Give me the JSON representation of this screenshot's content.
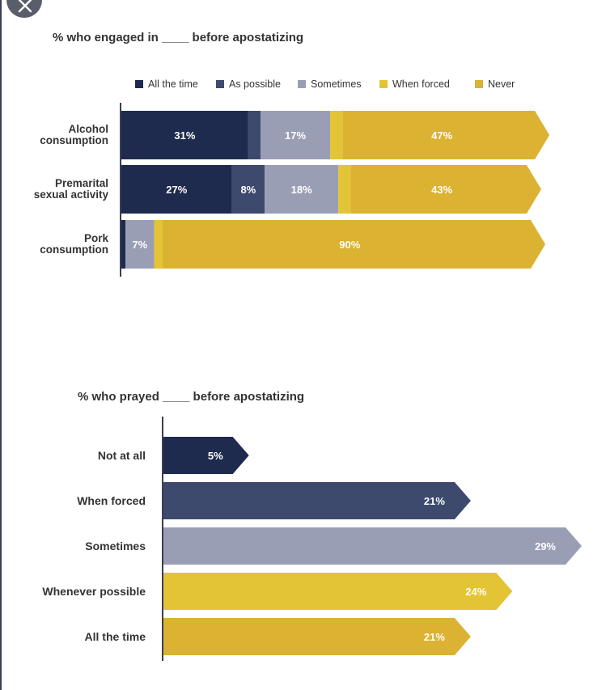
{
  "close_button": {
    "icon": "close-icon"
  },
  "charts": [
    {
      "title": "% who engaged in ____ before apostatizing"
    },
    {
      "title": "% who prayed ____ before apostatizing"
    }
  ],
  "colors": {
    "all_the_time": "#1f2a4f",
    "as_possible": "#3d4a6e",
    "sometimes": "#9a9eb5",
    "when_forced": "#e3c435",
    "never": "#dbb232",
    "axis": "#3a3f55"
  },
  "chart_data": [
    {
      "type": "bar",
      "orientation": "horizontal",
      "stacked": true,
      "title": "% who engaged in ____ before apostatizing",
      "legend_position": "top",
      "categories": [
        [
          "Alcohol",
          "consumption"
        ],
        [
          "Premarital",
          "sexual activity"
        ],
        [
          "Pork",
          "consumption"
        ]
      ],
      "series": [
        {
          "name": "All the time",
          "color": "#1f2a4f",
          "values": [
            31,
            27,
            1
          ],
          "labels": [
            "31%",
            "27%",
            ""
          ]
        },
        {
          "name": "As possible",
          "color": "#3d4a6e",
          "values": [
            3,
            8,
            0
          ],
          "labels": [
            "",
            "8%",
            ""
          ]
        },
        {
          "name": "Sometimes",
          "color": "#9a9eb5",
          "values": [
            17,
            18,
            7
          ],
          "labels": [
            "17%",
            "18%",
            "7%"
          ]
        },
        {
          "name": "When forced",
          "color": "#e3c435",
          "values": [
            3,
            3,
            2
          ],
          "labels": [
            "",
            "",
            ""
          ]
        },
        {
          "name": "Never",
          "color": "#dbb232",
          "values": [
            47,
            43,
            90
          ],
          "labels": [
            "47%",
            "43%",
            "90%"
          ]
        }
      ],
      "xlim": [
        0,
        100
      ],
      "grid": false
    },
    {
      "type": "bar",
      "orientation": "horizontal",
      "stacked": false,
      "title": "% who prayed ____ before apostatizing",
      "categories": [
        "Not at all",
        "When forced",
        "Sometimes",
        "Whenever possible",
        "All the time"
      ],
      "values": [
        5,
        21,
        29,
        24,
        21
      ],
      "labels": [
        "5%",
        "21%",
        "29%",
        "24%",
        "21%"
      ],
      "colors": [
        "#1f2a4f",
        "#3d4a6e",
        "#9a9eb5",
        "#e3c435",
        "#dbb232"
      ],
      "xlim": [
        0,
        29
      ],
      "grid": false
    }
  ]
}
